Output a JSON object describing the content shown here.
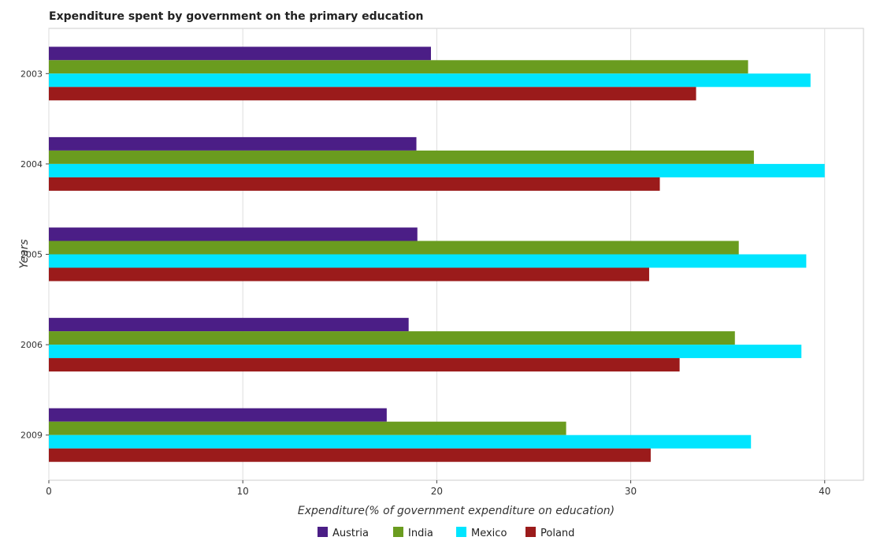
{
  "chart_data": {
    "type": "bar",
    "orientation": "horizontal",
    "title": "Expenditure spent by government on the primary education",
    "xlabel": "Expenditure(% of government expenditure on education)",
    "ylabel": "Years",
    "xlim": [
      0,
      42
    ],
    "xticks": [
      0,
      10,
      20,
      30,
      40
    ],
    "categories": [
      "2003",
      "2004",
      "2005",
      "2006",
      "2009"
    ],
    "series": [
      {
        "name": "Austria",
        "color": "#4b1e86",
        "values": [
          19.7,
          18.95,
          19.0,
          18.55,
          17.42
        ]
      },
      {
        "name": "India",
        "color": "#6a9c1f",
        "values": [
          36.05,
          36.35,
          35.57,
          35.37,
          26.67
        ]
      },
      {
        "name": "Mexico",
        "color": "#00e5ff",
        "values": [
          39.27,
          40.0,
          39.05,
          38.8,
          36.2
        ]
      },
      {
        "name": "Poland",
        "color": "#9b1b1b",
        "values": [
          33.37,
          31.5,
          30.95,
          32.52,
          31.03
        ]
      }
    ],
    "grid": true,
    "legend_position": "bottom"
  }
}
